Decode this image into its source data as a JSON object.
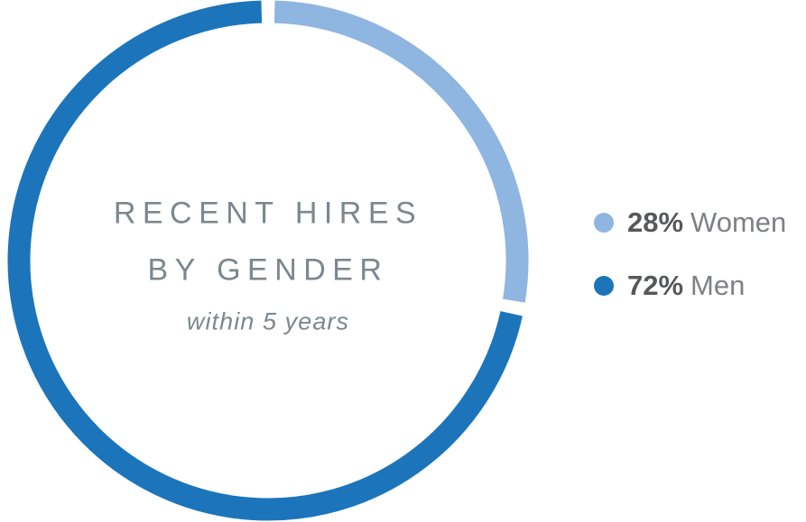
{
  "chart_data": {
    "type": "pie",
    "donut": true,
    "title": "RECENT HIRES BY GENDER",
    "subtitle": "within 5 years",
    "center": {
      "line1": "RECENT HIRES",
      "line2": "BY GENDER",
      "subtitle": "within 5 years"
    },
    "start_angle": 0,
    "gap_degrees": 3,
    "slices": [
      {
        "label": "Women",
        "value": 28,
        "color": "#8fb5e1"
      },
      {
        "label": "Men",
        "value": 72,
        "color": "#1c75bb"
      }
    ],
    "legend_position": "right"
  },
  "legend": {
    "items": [
      {
        "pct": "28%",
        "label": "Women",
        "color": "#8fb5e1"
      },
      {
        "pct": "72%",
        "label": "Men",
        "color": "#1c75bb"
      }
    ]
  }
}
